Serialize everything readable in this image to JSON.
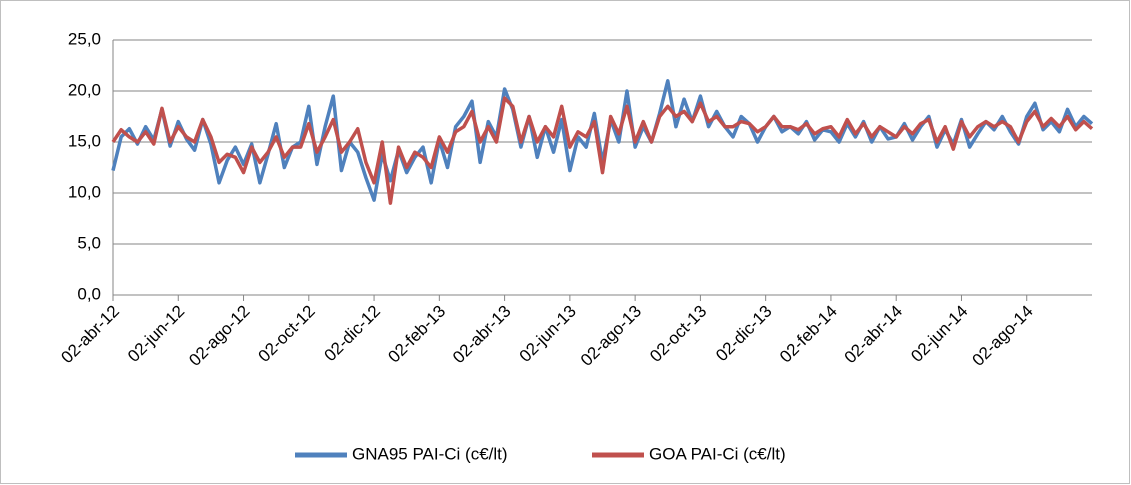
{
  "chart_data": {
    "type": "line",
    "categories": [
      "02-abr-12",
      null,
      null,
      null,
      null,
      null,
      null,
      null,
      "02-jun-12",
      null,
      null,
      null,
      null,
      null,
      null,
      null,
      "02-ago-12",
      null,
      null,
      null,
      null,
      null,
      null,
      null,
      "02-oct-12",
      null,
      null,
      null,
      null,
      null,
      null,
      null,
      "02-dic-12",
      null,
      null,
      null,
      null,
      null,
      null,
      null,
      "02-feb-13",
      null,
      null,
      null,
      null,
      null,
      null,
      null,
      "02-abr-13",
      null,
      null,
      null,
      null,
      null,
      null,
      null,
      "02-jun-13",
      null,
      null,
      null,
      null,
      null,
      null,
      null,
      "02-ago-13",
      null,
      null,
      null,
      null,
      null,
      null,
      null,
      "02-oct-13",
      null,
      null,
      null,
      null,
      null,
      null,
      null,
      "02-dic-13",
      null,
      null,
      null,
      null,
      null,
      null,
      null,
      "02-feb-14",
      null,
      null,
      null,
      null,
      null,
      null,
      null,
      "02-abr-14",
      null,
      null,
      null,
      null,
      null,
      null,
      null,
      "02-jun-14",
      null,
      null,
      null,
      null,
      null,
      null,
      null,
      "02-ago-14",
      null,
      null,
      null,
      null,
      null,
      null,
      null,
      null
    ],
    "series": [
      {
        "name": "GNA95 PAI-Ci (c€/lt)",
        "color": "#4f81bd",
        "values": [
          12.2,
          15.5,
          16.3,
          14.8,
          16.5,
          15.2,
          18.2,
          14.6,
          17.0,
          15.3,
          14.2,
          17.2,
          14.8,
          11.0,
          13.2,
          14.5,
          12.8,
          14.8,
          11.0,
          13.8,
          16.8,
          12.5,
          14.5,
          15.0,
          18.5,
          12.8,
          16.5,
          19.5,
          12.2,
          15.0,
          14.0,
          11.5,
          9.3,
          13.8,
          11.2,
          14.2,
          12.0,
          13.5,
          14.5,
          11.0,
          15.2,
          12.5,
          16.5,
          17.5,
          19.0,
          13.0,
          17.0,
          15.5,
          20.2,
          18.2,
          14.5,
          17.5,
          13.5,
          16.5,
          14.0,
          17.2,
          12.2,
          15.5,
          14.5,
          17.8,
          13.0,
          17.2,
          15.0,
          20.0,
          14.5,
          16.5,
          15.0,
          17.8,
          21.0,
          16.5,
          19.2,
          17.0,
          19.5,
          16.5,
          18.0,
          16.5,
          15.5,
          17.5,
          16.8,
          15.0,
          16.5,
          17.5,
          16.0,
          16.5,
          15.8,
          17.0,
          15.2,
          16.2,
          16.0,
          15.0,
          16.8,
          15.5,
          17.0,
          15.0,
          16.5,
          15.3,
          15.5,
          16.8,
          15.2,
          16.5,
          17.5,
          14.5,
          16.2,
          14.8,
          17.2,
          14.5,
          15.8,
          17.0,
          16.2,
          17.5,
          16.0,
          14.8,
          17.5,
          18.8,
          16.2,
          17.0,
          16.0,
          18.2,
          16.5,
          17.5,
          16.8
        ]
      },
      {
        "name": "GOA PAI-Ci (c€/lt)",
        "color": "#c0504d",
        "values": [
          15.0,
          16.2,
          15.5,
          15.0,
          16.0,
          14.8,
          18.3,
          15.0,
          16.5,
          15.5,
          15.0,
          17.2,
          15.5,
          13.0,
          13.8,
          13.5,
          12.0,
          14.5,
          13.0,
          14.0,
          15.5,
          13.5,
          14.5,
          14.5,
          16.8,
          14.0,
          15.5,
          17.2,
          14.0,
          15.0,
          16.3,
          13.0,
          11.0,
          15.0,
          9.0,
          14.5,
          12.5,
          14.0,
          13.5,
          12.5,
          15.5,
          14.0,
          16.0,
          16.5,
          18.0,
          15.0,
          16.5,
          15.0,
          19.3,
          18.5,
          15.0,
          17.5,
          15.0,
          16.5,
          15.5,
          18.5,
          14.5,
          16.0,
          15.5,
          17.0,
          12.0,
          17.5,
          15.8,
          18.5,
          15.0,
          17.0,
          15.0,
          17.5,
          18.5,
          17.5,
          18.0,
          17.0,
          18.8,
          17.0,
          17.5,
          16.5,
          16.5,
          17.0,
          16.8,
          16.0,
          16.5,
          17.5,
          16.5,
          16.5,
          16.2,
          16.8,
          15.8,
          16.3,
          16.5,
          15.5,
          17.2,
          15.8,
          16.8,
          15.5,
          16.5,
          16.0,
          15.5,
          16.5,
          15.8,
          16.8,
          17.2,
          15.0,
          16.5,
          14.3,
          17.0,
          15.5,
          16.5,
          17.0,
          16.5,
          17.0,
          16.5,
          15.0,
          17.0,
          18.0,
          16.5,
          17.3,
          16.5,
          17.5,
          16.2,
          17.0,
          16.3
        ]
      }
    ],
    "ylim": [
      0,
      25
    ],
    "yticks": [
      {
        "value": 0,
        "label": "0,0"
      },
      {
        "value": 5,
        "label": "5,0"
      },
      {
        "value": 10,
        "label": "10,0"
      },
      {
        "value": 15,
        "label": "15,0"
      },
      {
        "value": 20,
        "label": "20,0"
      },
      {
        "value": 25,
        "label": "25,0"
      }
    ],
    "grid": true,
    "legend": "bottom"
  }
}
